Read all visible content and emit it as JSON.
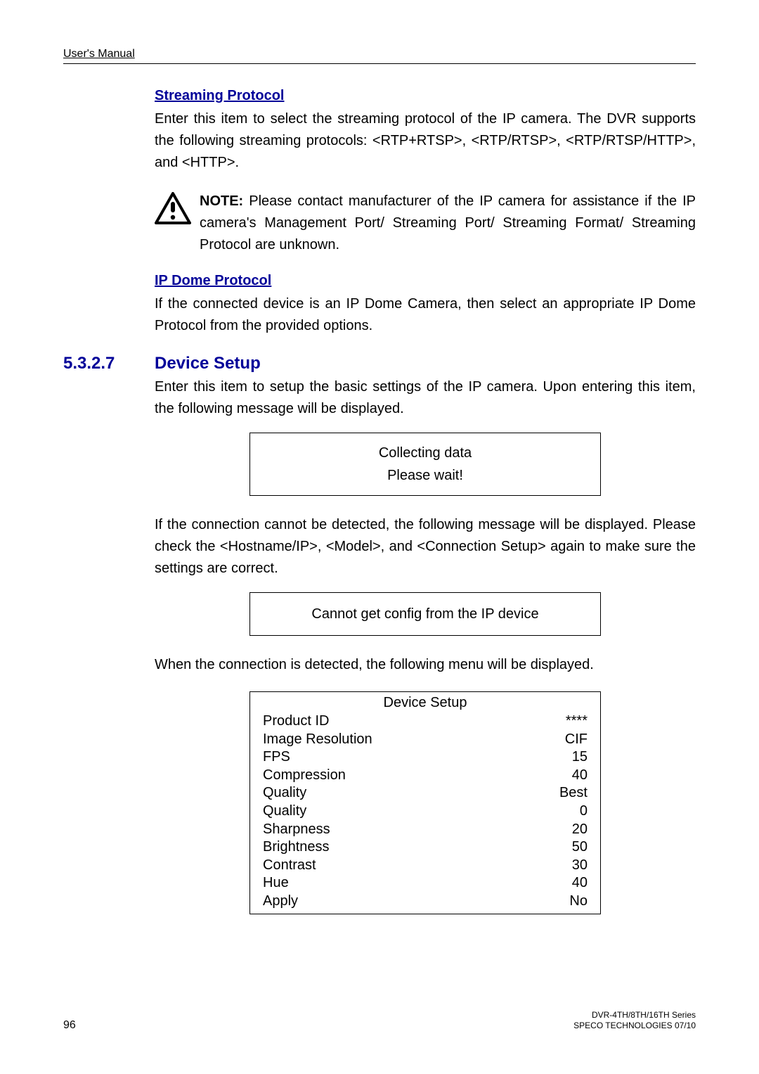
{
  "header": {
    "text": "User's Manual"
  },
  "sections": {
    "streaming": {
      "title": "Streaming Protocol",
      "body": "Enter this item to select the streaming protocol of the IP camera. The DVR supports the following streaming protocols: <RTP+RTSP>, <RTP/RTSP>, <RTP/RTSP/HTTP>, and <HTTP>."
    },
    "note": {
      "label": "NOTE:",
      "body": " Please contact manufacturer of the IP camera for assistance if the IP camera's Management Port/ Streaming Port/ Streaming Format/ Streaming Protocol are unknown."
    },
    "ipdome": {
      "title": "IP Dome Protocol",
      "body": "If the connected device is an IP Dome Camera, then select an appropriate IP Dome Protocol from the provided options."
    },
    "device_setup": {
      "num": "5.3.2.7",
      "title": "Device Setup",
      "intro": "Enter this item to setup the basic settings of the IP camera. Upon entering this item, the following message will be displayed.",
      "msg1_l1": "Collecting data",
      "msg1_l2": "Please wait!",
      "para2": "If the connection cannot be detected, the following message will be displayed. Please check the <Hostname/IP>, <Model>, and <Connection Setup> again to make sure the settings are correct.",
      "msg2": "Cannot get config from the IP device",
      "para3": "When the connection is detected, the following menu will be displayed."
    },
    "device_table": {
      "title": "Device Setup",
      "rows": [
        {
          "label": "Product ID",
          "value": "****"
        },
        {
          "label": "Image Resolution",
          "value": "CIF"
        },
        {
          "label": "FPS",
          "value": "15"
        },
        {
          "label": "Compression",
          "value": "40"
        },
        {
          "label": "Quality",
          "value": "Best"
        },
        {
          "label": "Quality",
          "value": "0"
        },
        {
          "label": "Sharpness",
          "value": "20"
        },
        {
          "label": "Brightness",
          "value": "50"
        },
        {
          "label": "Contrast",
          "value": "30"
        },
        {
          "label": "Hue",
          "value": "40"
        },
        {
          "label": "Apply",
          "value": "No"
        }
      ]
    }
  },
  "footer": {
    "page": "96",
    "line1": "DVR-4TH/8TH/16TH Series",
    "line2": "SPECO TECHNOLOGIES 07/10"
  },
  "colors": {
    "heading": "#000099",
    "text": "#000000",
    "bg": "#ffffff",
    "border": "#000000"
  }
}
